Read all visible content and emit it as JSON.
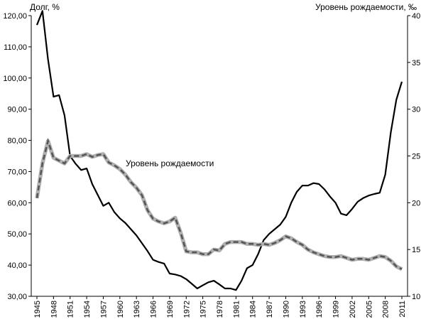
{
  "chart_data": {
    "type": "line",
    "left_axis": {
      "label": "Долг, %",
      "range": [
        30,
        120
      ],
      "ticks": [
        "30,00",
        "40,00",
        "50,00",
        "60,00",
        "70,00",
        "80,00",
        "90,00",
        "100,00",
        "110,00",
        "120,00"
      ]
    },
    "right_axis": {
      "label": "Уровень рождаемости, ‰",
      "range": [
        10,
        40
      ],
      "ticks": [
        "10",
        "15",
        "20",
        "25",
        "30",
        "35",
        "40"
      ]
    },
    "x_ticks": [
      1945,
      1948,
      1951,
      1954,
      1957,
      1960,
      1963,
      1966,
      1969,
      1972,
      1975,
      1978,
      1981,
      1984,
      1987,
      1990,
      1993,
      1996,
      1999,
      2002,
      2005,
      2008,
      2011
    ],
    "grid": false,
    "annotation": "Уровень рождаемости",
    "series": [
      {
        "axis": "left",
        "style": "solid",
        "color": "#000000",
        "x": [
          1945,
          1946,
          1947,
          1948,
          1949,
          1950,
          1951,
          1952,
          1953,
          1954,
          1955,
          1956,
          1957,
          1958,
          1959,
          1960,
          1961,
          1962,
          1963,
          1964,
          1965,
          1966,
          1967,
          1968,
          1969,
          1970,
          1971,
          1972,
          1973,
          1974,
          1975,
          1976,
          1977,
          1978,
          1979,
          1980,
          1981,
          1982,
          1983,
          1984,
          1985,
          1986,
          1987,
          1988,
          1989,
          1990,
          1991,
          1992,
          1993,
          1994,
          1995,
          1996,
          1997,
          1998,
          1999,
          2000,
          2001,
          2002,
          2003,
          2004,
          2005,
          2006,
          2007,
          2008,
          2009,
          2010,
          2011
        ],
        "values": [
          117,
          121.5,
          106,
          94,
          94.5,
          88,
          75,
          72.5,
          70.5,
          71,
          66,
          62.5,
          59,
          60,
          57,
          55,
          53.5,
          51.5,
          49.5,
          47,
          44.5,
          41.7,
          41,
          40.5,
          37.3,
          37,
          36.5,
          35.5,
          34,
          32.5,
          33.5,
          34.5,
          35,
          33.8,
          32.5,
          32.5,
          32,
          35,
          39,
          40,
          43.5,
          48,
          50,
          51.5,
          53,
          55.5,
          60,
          63.5,
          65.5,
          65.5,
          66.3,
          66,
          64.3,
          62,
          60,
          56.5,
          56,
          58,
          60.3,
          61.5,
          62.3,
          62.8,
          63.2,
          69,
          82.5,
          93,
          98.8
        ]
      },
      {
        "axis": "right",
        "style": "dashed-grey",
        "color": "#555555",
        "x": [
          1945,
          1946,
          1947,
          1948,
          1949,
          1950,
          1951,
          1952,
          1953,
          1954,
          1955,
          1956,
          1957,
          1958,
          1959,
          1960,
          1961,
          1962,
          1963,
          1964,
          1965,
          1966,
          1967,
          1968,
          1969,
          1970,
          1971,
          1972,
          1973,
          1974,
          1975,
          1976,
          1977,
          1978,
          1979,
          1980,
          1981,
          1982,
          1983,
          1984,
          1985,
          1986,
          1987,
          1988,
          1989,
          1990,
          1991,
          1992,
          1993,
          1994,
          1995,
          1996,
          1997,
          1998,
          1999,
          2000,
          2001,
          2002,
          2003,
          2004,
          2005,
          2006,
          2007,
          2008,
          2009,
          2010,
          2011
        ],
        "values": [
          20.5,
          24.2,
          26.6,
          24.8,
          24.5,
          24.2,
          25,
          25,
          25,
          25.2,
          24.9,
          25.1,
          25.2,
          24.3,
          24,
          23.6,
          23,
          22.2,
          21.6,
          20.8,
          19.2,
          18.3,
          18,
          17.8,
          18,
          18.4,
          16.8,
          14.8,
          14.7,
          14.7,
          14.5,
          14.5,
          15,
          14.9,
          15.6,
          15.8,
          15.8,
          15.8,
          15.6,
          15.6,
          15.5,
          15.6,
          15.5,
          15.7,
          16,
          16.4,
          16.2,
          15.8,
          15.5,
          15,
          14.7,
          14.5,
          14.3,
          14.2,
          14.2,
          14.3,
          14.1,
          13.9,
          14,
          14,
          13.9,
          14.1,
          14.3,
          14.2,
          13.8,
          13.2,
          12.9
        ]
      }
    ]
  }
}
